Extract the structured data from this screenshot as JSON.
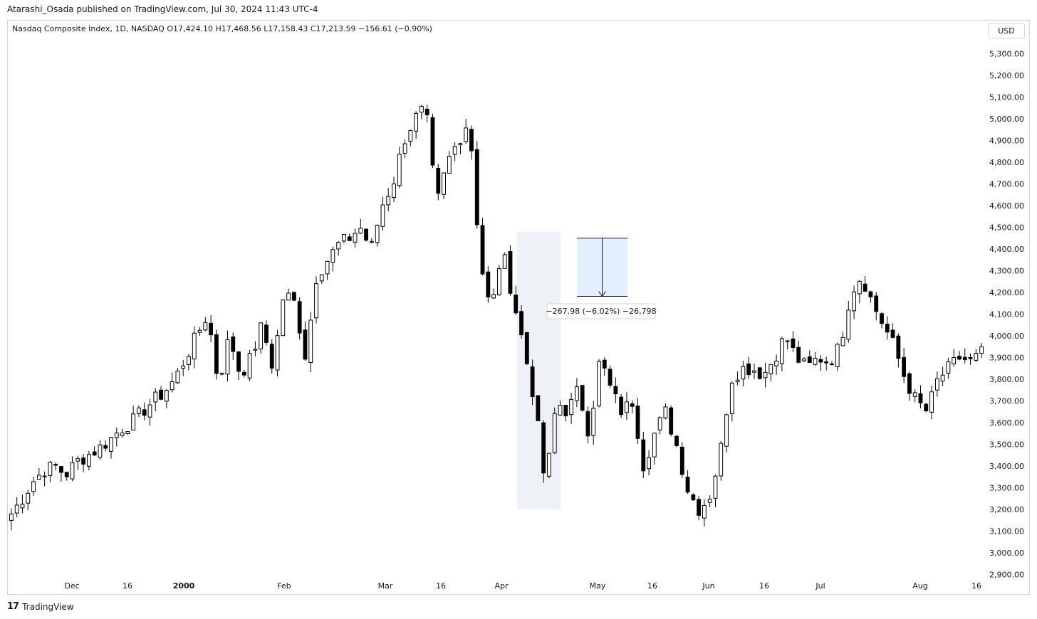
{
  "publication": "Atarashi_Osada published on TradingView.com, Jul 30, 2024 11:43 UTC-4",
  "legend": "Nasdaq Composite Index, 1D, NASDAQ  O17,424.10  H17,468.56  L17,158.43  C17,213.59  −156.61 (−0.90%)",
  "currency_button": "USD",
  "footer_brand": "TradingView",
  "footer_logo": "17",
  "colors": {
    "up_body": "#ffffff",
    "down_body": "#000000",
    "wick": "#000000",
    "measure_fill": "#e3eefe",
    "measure_border": "#131722",
    "highlight": "#eef1f5"
  },
  "chart_data": {
    "type": "candlestick",
    "title": "Nasdaq Composite Index, 1D, NASDAQ",
    "ylim": [
      2900,
      5350
    ],
    "y_ticks": [
      "5,300.00",
      "5,200.00",
      "5,100.00",
      "5,000.00",
      "4,900.00",
      "4,800.00",
      "4,700.00",
      "4,600.00",
      "4,500.00",
      "4,400.00",
      "4,300.00",
      "4,200.00",
      "4,100.00",
      "4,000.00",
      "3,900.00",
      "3,800.00",
      "3,700.00",
      "3,600.00",
      "3,500.00",
      "3,400.00",
      "3,300.00",
      "3,200.00",
      "3,100.00",
      "3,000.00",
      "2,900.00"
    ],
    "x_labels": [
      "Dec",
      "16",
      "2000",
      "Feb",
      "Mar",
      "16",
      "Apr",
      "May",
      "16",
      "Jun",
      "16",
      "Jul",
      "Aug",
      "16"
    ],
    "measure_label": "−267.98 (−6.02%) −26,798",
    "measure_range": [
      4450,
      4182
    ],
    "highlight_range": [
      4480,
      3200
    ],
    "anchors": [
      3180,
      3250,
      3330,
      3380,
      3400,
      3360,
      3420,
      3450,
      3480,
      3520,
      3570,
      3600,
      3650,
      3700,
      3740,
      3800,
      3900,
      4000,
      4100,
      3780,
      4000,
      3820,
      3900,
      4050,
      3850,
      4200,
      4150,
      3900,
      4280,
      4350,
      4420,
      4450,
      4500,
      4400,
      4600,
      4700,
      4900,
      5000,
      5050,
      4600,
      4800,
      4900,
      5000,
      4350,
      4100,
      4400,
      4180,
      3950,
      3700,
      3300,
      3700,
      3650,
      3750,
      3550,
      3900,
      3750,
      3650,
      3700,
      3400,
      3550,
      3650,
      3500,
      3300,
      3200,
      3250,
      3450,
      3800,
      3850,
      3850,
      3820,
      3900,
      4000,
      3900,
      3850,
      3900,
      3880,
      3950,
      4200,
      4280,
      4150,
      4050,
      3950,
      3800,
      3700,
      3650,
      3800,
      3850,
      3900,
      3880,
      3920
    ],
    "candle_count": 176
  }
}
